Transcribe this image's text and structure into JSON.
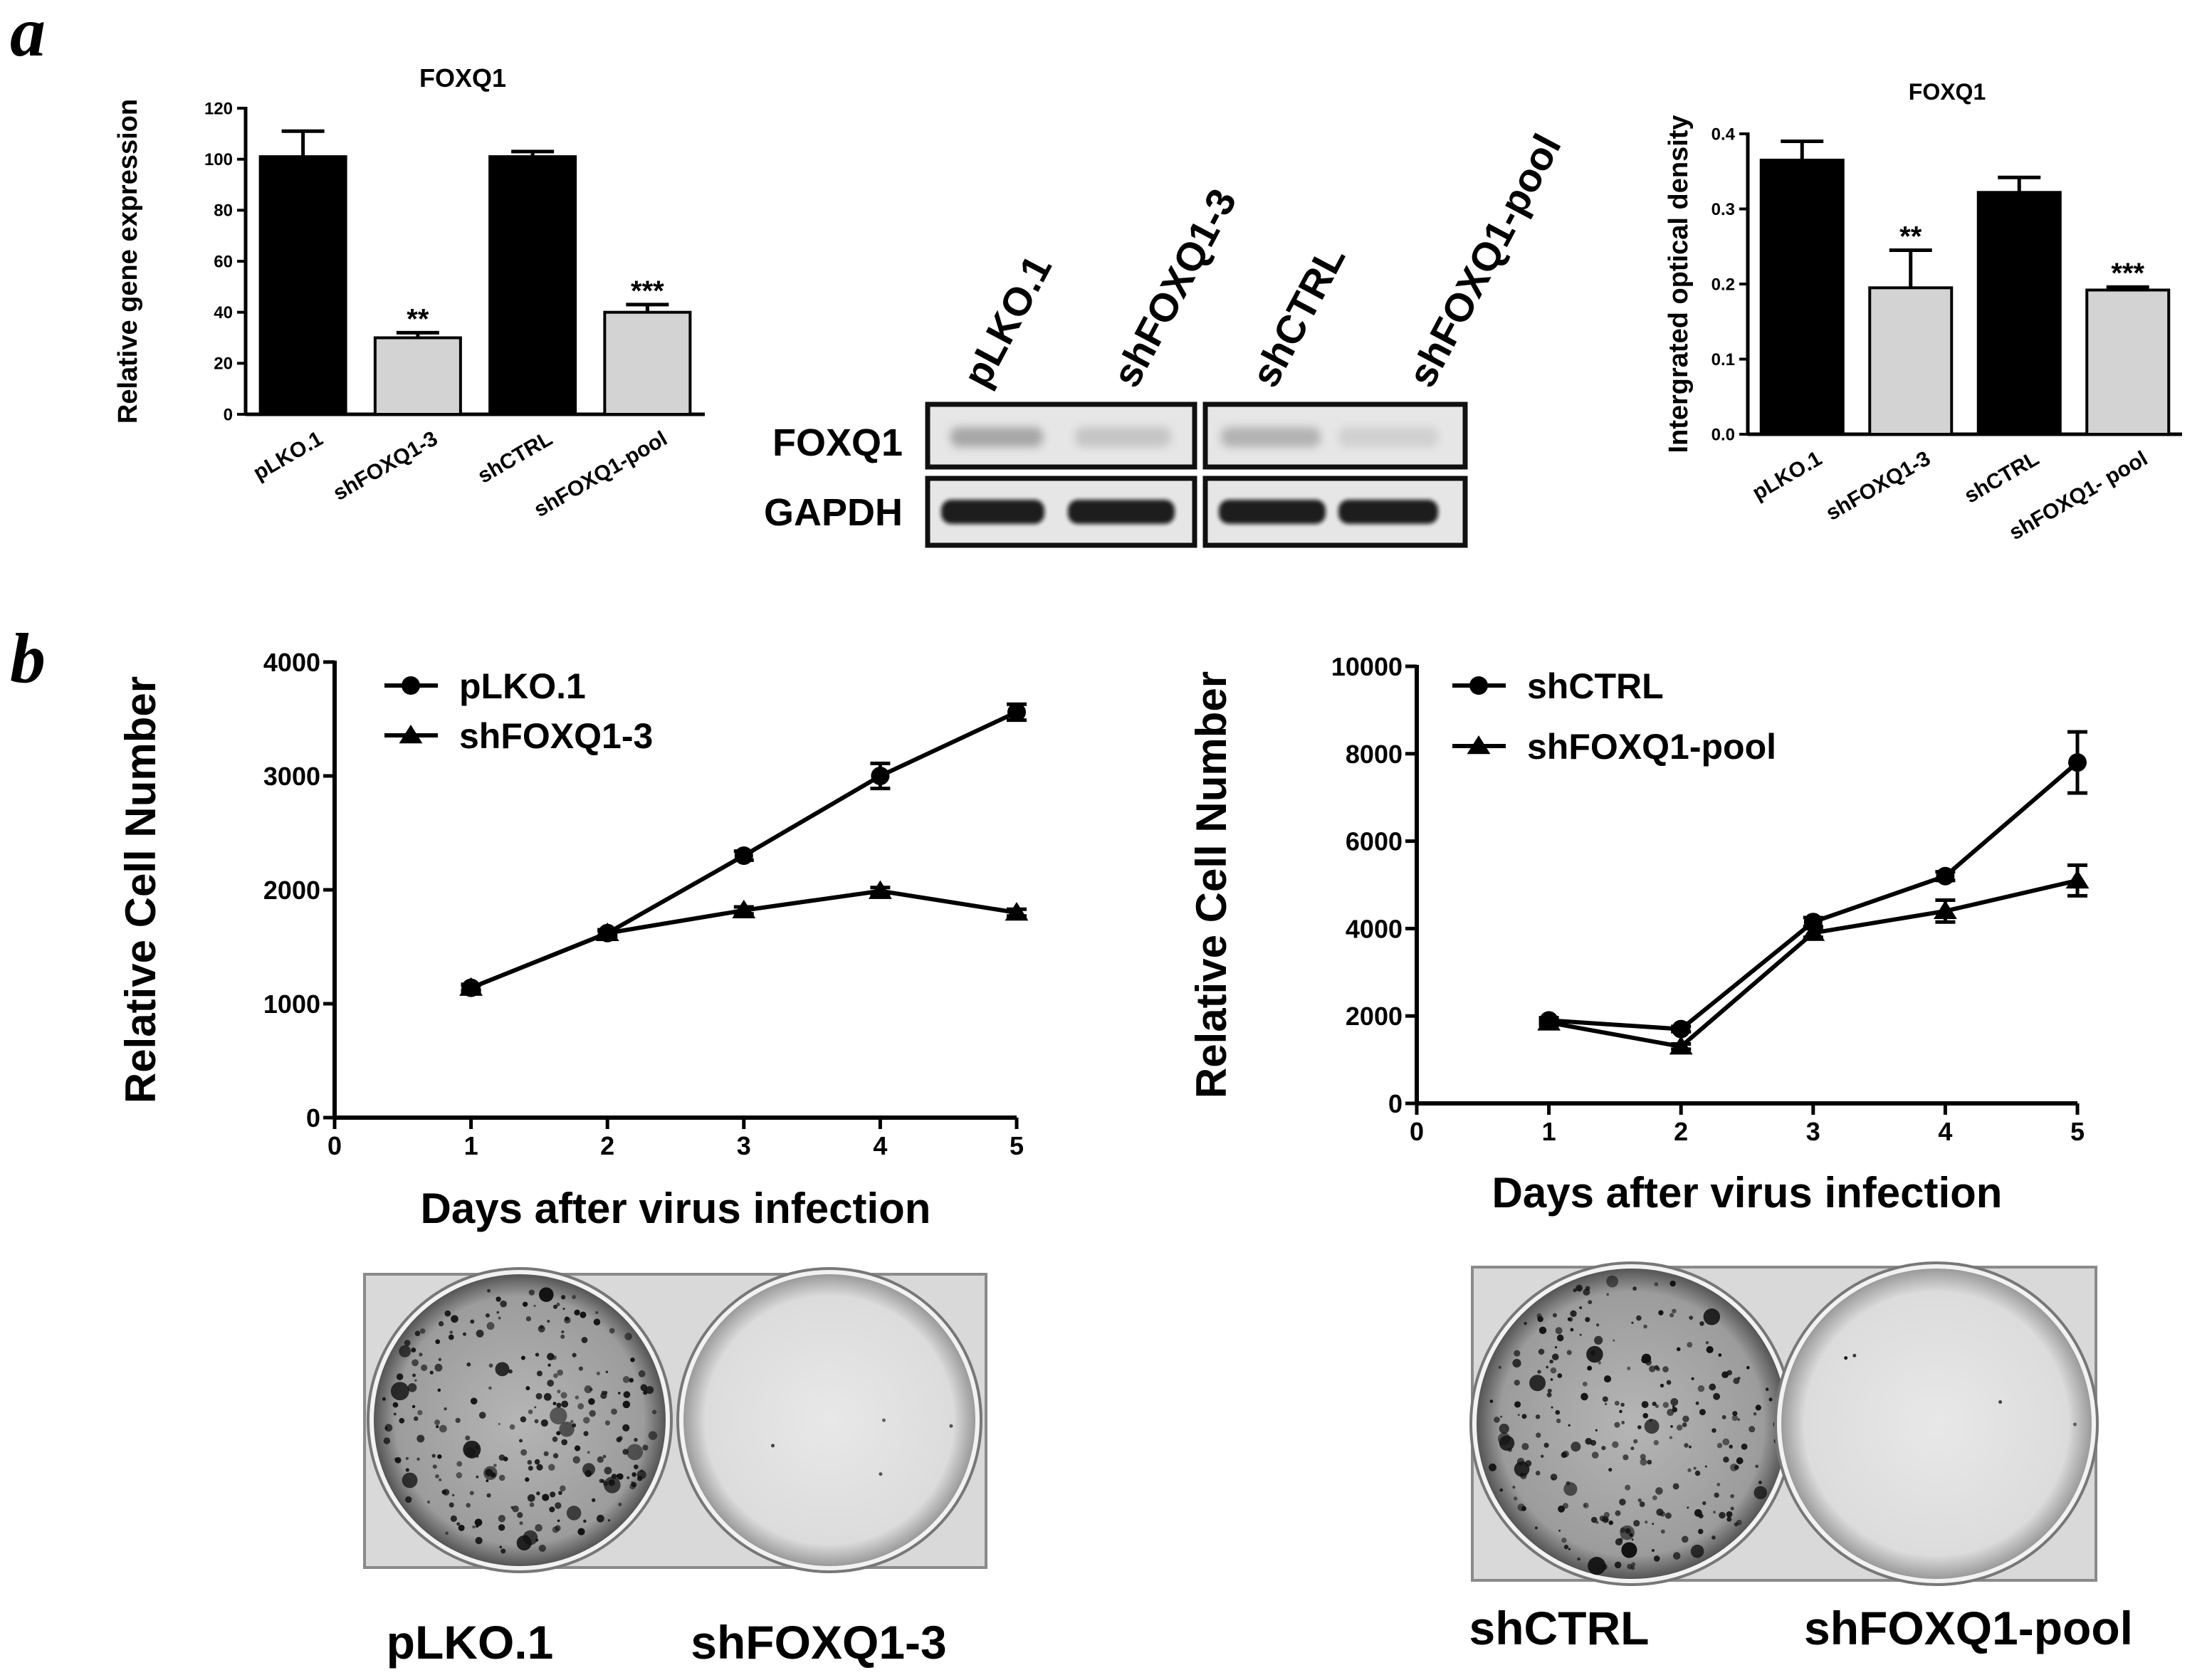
{
  "panel_labels": {
    "a": "a",
    "b": "b"
  },
  "blot": {
    "lanes": [
      "pLKO.1",
      "shFOXQ1-3",
      "shCTRL",
      "shFOXQ1-pool"
    ],
    "rows": [
      "FOXQ1",
      "GAPDH"
    ]
  },
  "plates": [
    {
      "labels": [
        "pLKO.1",
        "shFOXQ1-3"
      ]
    },
    {
      "labels": [
        "shCTRL",
        "shFOXQ1-pool"
      ]
    }
  ],
  "chart_data": [
    {
      "id": "qpcr",
      "type": "bar",
      "title": "FOXQ1",
      "xlabel": "",
      "ylabel": "Relative gene expression",
      "categories": [
        "pLKO.1",
        "shFOXQ1-3",
        "shCTRL",
        "shFOXQ1-pool"
      ],
      "values": [
        101,
        30,
        101,
        40
      ],
      "errors": [
        10,
        2,
        2,
        3
      ],
      "colors": [
        "#000000",
        "#d3d3d3",
        "#000000",
        "#d3d3d3"
      ],
      "significance": [
        "",
        "**",
        "",
        "***"
      ],
      "ylim": [
        0,
        120
      ],
      "yticks": [
        0,
        20,
        40,
        60,
        80,
        100,
        120
      ],
      "grid": false
    },
    {
      "id": "density",
      "type": "bar",
      "title": "FOXQ1",
      "xlabel": "",
      "ylabel": "Intergrated optical density",
      "categories": [
        "pLKO.1",
        "shFOXQ1-3",
        "shCTRL",
        "shFOXQ1- pool"
      ],
      "values": [
        0.365,
        0.195,
        0.322,
        0.192
      ],
      "errors": [
        0.025,
        0.05,
        0.02,
        0.004
      ],
      "colors": [
        "#000000",
        "#d3d3d3",
        "#000000",
        "#d3d3d3"
      ],
      "significance": [
        "",
        "**",
        "",
        "***"
      ],
      "ylim": [
        0,
        0.4
      ],
      "yticks": [
        0.0,
        0.1,
        0.2,
        0.3,
        0.4
      ],
      "ytick_labels": [
        "0.0",
        "0.1",
        "0.2",
        "0.3",
        "0.4"
      ],
      "grid": false
    },
    {
      "id": "growth1",
      "type": "line",
      "title": "",
      "xlabel": "Days after virus infection",
      "ylabel": "Relative Cell Number",
      "x": [
        1,
        2,
        3,
        4,
        5
      ],
      "xlim": [
        0,
        5
      ],
      "xticks": [
        0,
        1,
        2,
        3,
        4,
        5
      ],
      "ylim": [
        0,
        4000
      ],
      "yticks": [
        0,
        1000,
        2000,
        3000,
        4000
      ],
      "legend": "top-left",
      "grid": false,
      "series": [
        {
          "name": "pLKO.1",
          "marker": "circle",
          "values": [
            1140,
            1620,
            2300,
            3000,
            3560
          ],
          "errors": [
            30,
            30,
            40,
            110,
            70
          ]
        },
        {
          "name": "shFOXQ1-3",
          "marker": "triangle",
          "values": [
            1140,
            1620,
            1820,
            1990,
            1800
          ],
          "errors": [
            20,
            20,
            30,
            30,
            30
          ]
        }
      ]
    },
    {
      "id": "growth2",
      "type": "line",
      "title": "",
      "xlabel": "Days after virus infection",
      "ylabel": "Relative Cell Number",
      "x": [
        1,
        2,
        3,
        4,
        5
      ],
      "xlim": [
        0,
        5
      ],
      "xticks": [
        0,
        1,
        2,
        3,
        4,
        5
      ],
      "ylim": [
        0,
        10000
      ],
      "yticks": [
        0,
        2000,
        4000,
        6000,
        8000,
        10000
      ],
      "legend": "top-left",
      "grid": false,
      "series": [
        {
          "name": "shCTRL",
          "marker": "circle",
          "values": [
            1900,
            1700,
            4150,
            5200,
            7800
          ],
          "errors": [
            60,
            60,
            100,
            100,
            700
          ]
        },
        {
          "name": "shFOXQ1-pool",
          "marker": "triangle",
          "values": [
            1850,
            1300,
            3900,
            4400,
            5100
          ],
          "errors": [
            60,
            60,
            100,
            250,
            350
          ]
        }
      ]
    }
  ]
}
